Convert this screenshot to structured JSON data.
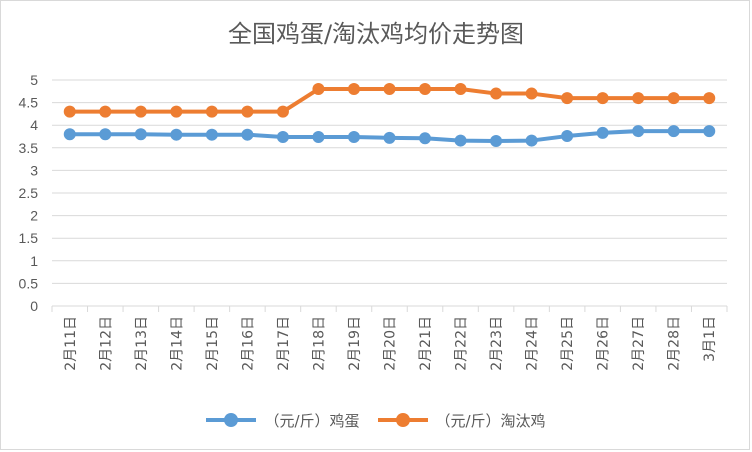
{
  "chart_data": {
    "type": "line",
    "title": "全国鸡蛋/淘汰鸡均价走势图",
    "categories": [
      "2月11日",
      "2月12日",
      "2月13日",
      "2月14日",
      "2月15日",
      "2月16日",
      "2月17日",
      "2月18日",
      "2月19日",
      "2月20日",
      "2月21日",
      "2月22日",
      "2月23日",
      "2月24日",
      "2月25日",
      "2月26日",
      "2月27日",
      "2月28日",
      "3月1日"
    ],
    "y_ticks": [
      "0",
      "0.5",
      "1",
      "1.5",
      "2",
      "2.5",
      "3",
      "3.5",
      "4",
      "4.5",
      "5"
    ],
    "ylim": [
      0,
      5
    ],
    "grid": true,
    "legend_position": "bottom",
    "series": [
      {
        "name": "（元/斤）鸡蛋",
        "color": "#5b9bd5",
        "values": [
          3.8,
          3.8,
          3.8,
          3.79,
          3.79,
          3.79,
          3.74,
          3.74,
          3.74,
          3.72,
          3.71,
          3.66,
          3.65,
          3.66,
          3.76,
          3.83,
          3.87,
          3.87,
          3.87
        ]
      },
      {
        "name": "（元/斤）淘汰鸡",
        "color": "#ed7d31",
        "values": [
          4.3,
          4.3,
          4.3,
          4.3,
          4.3,
          4.3,
          4.3,
          4.8,
          4.8,
          4.8,
          4.8,
          4.8,
          4.7,
          4.7,
          4.6,
          4.6,
          4.6,
          4.6,
          4.6
        ]
      }
    ]
  }
}
